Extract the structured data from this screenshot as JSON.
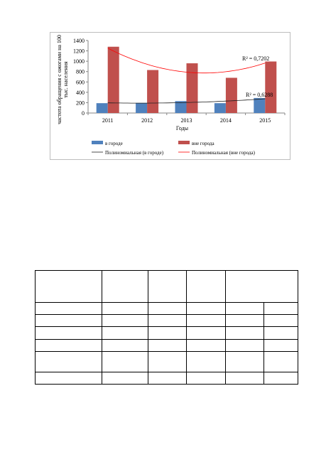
{
  "chart_data": {
    "type": "bar",
    "categories": [
      "2011",
      "2012",
      "2013",
      "2014",
      "2015"
    ],
    "xlabel": "Годы",
    "ylabel": "частота обращения с ожогами на 100 тыс. населения",
    "ylim": [
      0,
      1400
    ],
    "yticks": [
      0,
      200,
      400,
      600,
      800,
      1000,
      1200,
      1400
    ],
    "series": [
      {
        "name": "в городе",
        "values": [
          190,
          195,
          230,
          190,
          290
        ],
        "color": "#4f81bd"
      },
      {
        "name": "вне города",
        "values": [
          1280,
          830,
          960,
          680,
          995
        ],
        "color": "#c0504d"
      }
    ],
    "trendlines": [
      {
        "name": "Полиномиальная (в городе)",
        "series": "в городе",
        "type": "polynomial",
        "r2": "R² = 0,6288",
        "color": "#1f1f1f"
      },
      {
        "name": "Полиномиальная (вне города)",
        "series": "вне города",
        "type": "polynomial",
        "r2": "R² = 0,7202",
        "color": "#ff0000"
      }
    ],
    "legend_position": "bottom",
    "grid": false
  },
  "table": {
    "rows": [
      [
        "",
        "",
        "",
        "",
        ""
      ],
      [
        "",
        "",
        "",
        "",
        "",
        ""
      ],
      [
        "",
        "",
        "",
        "",
        "",
        ""
      ],
      [
        "",
        "",
        "",
        "",
        "",
        ""
      ],
      [
        "",
        "",
        "",
        "",
        "",
        ""
      ],
      [
        "",
        "",
        "",
        "",
        "",
        ""
      ],
      [
        "",
        "",
        "",
        "",
        "",
        ""
      ]
    ]
  }
}
